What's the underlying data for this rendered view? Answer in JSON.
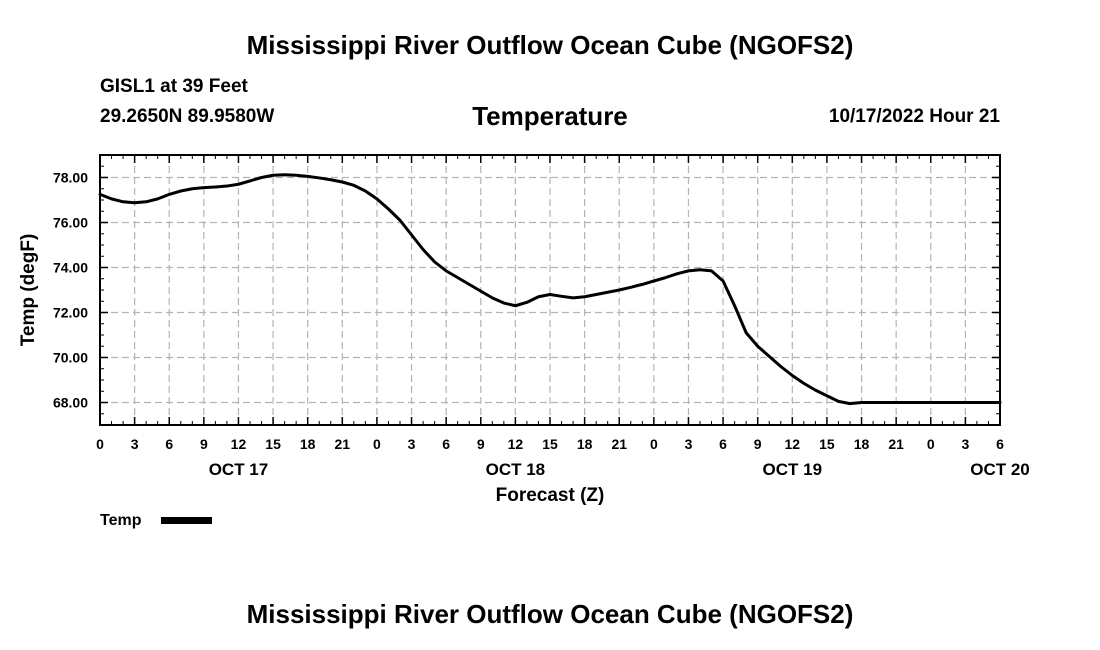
{
  "header": {
    "title": "Mississippi River Outflow Ocean Cube (NGOFS2)",
    "station": "GISL1 at 39 Feet",
    "coords": "29.2650N  89.9580W",
    "datetime": "10/17/2022 Hour 21"
  },
  "footer": {
    "title": "Mississippi River Outflow Ocean Cube (NGOFS2)"
  },
  "chart_data": {
    "type": "line",
    "title": "Temperature",
    "xlabel": "Forecast (Z)",
    "ylabel": "Temp (degF)",
    "xlim": [
      0,
      78
    ],
    "ylim": [
      67,
      79
    ],
    "grid": true,
    "x_ticks": [
      "0",
      "3",
      "6",
      "9",
      "12",
      "15",
      "18",
      "21",
      "0",
      "3",
      "6",
      "9",
      "12",
      "15",
      "18",
      "21",
      "0",
      "3",
      "6",
      "9",
      "12",
      "15",
      "18",
      "21",
      "0",
      "3",
      "6"
    ],
    "day_labels": [
      {
        "label": "OCT 17",
        "hour": 12
      },
      {
        "label": "OCT 18",
        "hour": 36
      },
      {
        "label": "OCT 19",
        "hour": 60
      },
      {
        "label": "OCT 20",
        "hour": 78
      }
    ],
    "y_ticks": [
      "68.00",
      "70.00",
      "72.00",
      "74.00",
      "76.00",
      "78.00"
    ],
    "y_tick_values": [
      68,
      70,
      72,
      74,
      76,
      78
    ],
    "legend": [
      {
        "name": "Temp",
        "color": "#000000"
      }
    ],
    "series": [
      {
        "name": "Temp",
        "color": "#000000",
        "x": [
          0,
          1,
          2,
          3,
          4,
          5,
          6,
          7,
          8,
          9,
          10,
          11,
          12,
          13,
          14,
          15,
          16,
          17,
          18,
          19,
          20,
          21,
          22,
          23,
          24,
          25,
          26,
          27,
          28,
          29,
          30,
          31,
          32,
          33,
          34,
          35,
          36,
          37,
          38,
          39,
          40,
          41,
          42,
          43,
          44,
          45,
          46,
          47,
          48,
          49,
          50,
          51,
          52,
          53,
          54,
          55,
          56,
          57,
          58,
          59,
          60,
          61,
          62,
          63,
          64,
          65,
          66,
          67,
          68,
          69,
          70,
          71,
          72,
          73,
          74,
          75,
          76,
          77,
          78
        ],
        "y": [
          77.25,
          77.05,
          76.92,
          76.88,
          76.92,
          77.05,
          77.25,
          77.4,
          77.5,
          77.55,
          77.58,
          77.62,
          77.7,
          77.85,
          78.0,
          78.1,
          78.12,
          78.1,
          78.05,
          77.98,
          77.9,
          77.8,
          77.65,
          77.4,
          77.05,
          76.6,
          76.1,
          75.45,
          74.8,
          74.25,
          73.85,
          73.55,
          73.25,
          72.95,
          72.65,
          72.42,
          72.3,
          72.45,
          72.7,
          72.8,
          72.72,
          72.65,
          72.7,
          72.8,
          72.9,
          73.0,
          73.12,
          73.25,
          73.4,
          73.55,
          73.72,
          73.85,
          73.9,
          73.85,
          73.4,
          72.3,
          71.1,
          70.5,
          70.05,
          69.6,
          69.2,
          68.85,
          68.55,
          68.3,
          68.05,
          67.95,
          68.0,
          68.0,
          68.0,
          68.0,
          68.0,
          68.0,
          68.0,
          68.0,
          68.0,
          68.0,
          68.0,
          68.0,
          68.0
        ]
      }
    ]
  }
}
